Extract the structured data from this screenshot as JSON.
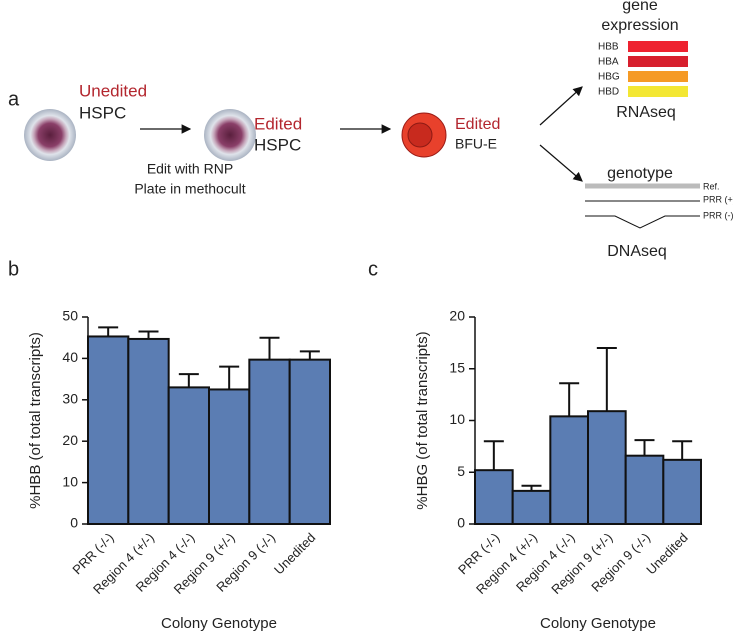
{
  "panels": {
    "a": "a"
  },
  "diagram": {
    "cell1_state": "Unedited",
    "cell1_type": "HSPC",
    "cell2_state": "Edited",
    "cell2_type": "HSPC",
    "step1": "Edit with RNP",
    "step2": "Plate in methocult",
    "cell3_state": "Edited",
    "cell3_type": "BFU-E",
    "expr_title_1": "gene",
    "expr_title_2": "expression",
    "genes": [
      "HBB",
      "HBA",
      "HBG",
      "HBD"
    ],
    "expr_method": "RNAseq",
    "geno_title": "genotype",
    "tracks": [
      "Ref.",
      "PRR (+)",
      "PRR (-)"
    ],
    "geno_method": "DNAseq"
  },
  "chart_data": [
    {
      "type": "bar",
      "panel_label": "b",
      "ylabel": "%HBB (of total transcripts)",
      "xlabel": "Colony Genotype",
      "categories": [
        "PRR (-/-)",
        "Region 4 (+/-)",
        "Region 4 (-/-)",
        "Region 9 (+/-)",
        "Region 9 (-/-)",
        "Unedited"
      ],
      "values": [
        45.3,
        44.7,
        33,
        32.5,
        39.7,
        39.7
      ],
      "errors": [
        2.2,
        1.8,
        3.2,
        5.5,
        5.3,
        2
      ],
      "color": "#5b7db3",
      "ylim": [
        0,
        50
      ],
      "yticks": [
        0,
        10,
        20,
        30,
        40,
        50
      ]
    },
    {
      "type": "bar",
      "panel_label": "c",
      "ylabel": "%HBG (of total transcripts)",
      "xlabel": "Colony Genotype",
      "categories": [
        "PRR (-/-)",
        "Region 4 (+/-)",
        "Region 4 (-/-)",
        "Region 9 (+/-)",
        "Region 9 (-/-)",
        "Unedited"
      ],
      "values": [
        5.2,
        3.2,
        10.4,
        10.9,
        6.6,
        6.2
      ],
      "errors": [
        2.8,
        0.5,
        3.2,
        6.1,
        1.5,
        1.8
      ],
      "color": "#5b7db3",
      "ylim": [
        0,
        20
      ],
      "yticks": [
        0,
        5,
        10,
        15,
        20
      ]
    }
  ]
}
